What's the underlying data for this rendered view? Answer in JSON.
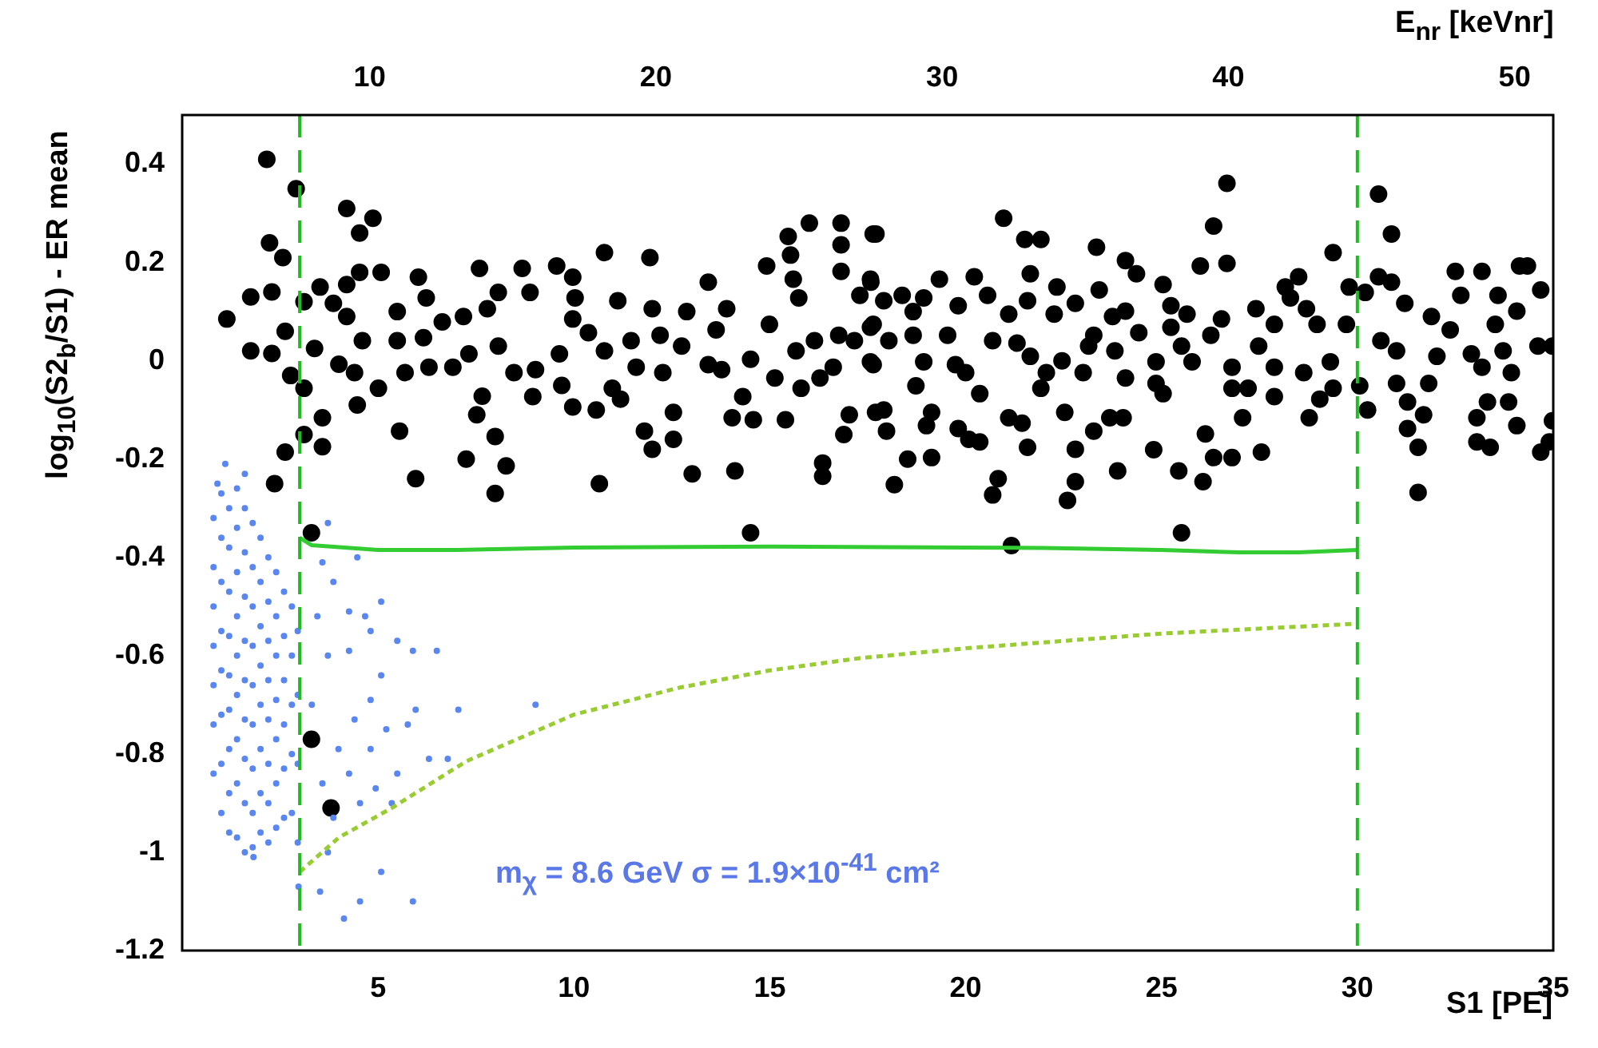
{
  "chart_data": {
    "type": "scatter",
    "xlabel": "S1 [PE]",
    "ylabel": "log$_{10}$(S2$_{b}$/S1) - ER mean",
    "x2label": "E$_{nr}$ [keVnr]",
    "xlim": [
      0,
      35
    ],
    "xticks": [
      5,
      10,
      15,
      20,
      25,
      30,
      35
    ],
    "x2lim": [
      3.45,
      51.35
    ],
    "x2ticks": [
      10,
      20,
      30,
      40,
      50
    ],
    "ylim": [
      -1.2,
      0.5
    ],
    "yticks": [
      -1.2,
      -1,
      -0.8,
      -0.6,
      -0.4,
      -0.2,
      0,
      0.2,
      0.4
    ],
    "annotations": [
      "m$_{χ}$ = 8.6 GeV     σ = 1.9×10$^{-41}$ cm²"
    ],
    "ref_lines": [
      {
        "axis": "x",
        "value": 3,
        "label": null,
        "color": "#22bb22",
        "line_style": "dashed"
      },
      {
        "axis": "x",
        "value": 30,
        "label": null,
        "color": "#22bb22",
        "line_style": "dashed"
      }
    ],
    "series": [
      {
        "type": "scatter",
        "marker": "circle",
        "color": "#5a86f0",
        "x": [
          0.8,
          0.8,
          0.8,
          0.8,
          0.8,
          0.8,
          0.8,
          1.0,
          1.0,
          1.0,
          1.0,
          1.0,
          1.0,
          1.0,
          1.0,
          1.2,
          1.2,
          1.2,
          1.2,
          1.2,
          1.2,
          1.2,
          1.2,
          1.2,
          1.4,
          1.4,
          1.4,
          1.4,
          1.4,
          1.4,
          1.4,
          1.4,
          1.4,
          1.6,
          1.6,
          1.6,
          1.6,
          1.6,
          1.6,
          1.6,
          1.6,
          1.6,
          1.8,
          1.8,
          1.8,
          1.8,
          1.8,
          1.8,
          1.8,
          1.8,
          1.8,
          2.0,
          2.0,
          2.0,
          2.0,
          2.0,
          2.0,
          2.0,
          2.0,
          2.2,
          2.2,
          2.2,
          2.2,
          2.2,
          2.2,
          2.2,
          2.2,
          2.4,
          2.4,
          2.4,
          2.4,
          2.4,
          2.4,
          2.4,
          2.6,
          2.6,
          2.6,
          2.6,
          2.6,
          2.6,
          2.8,
          2.8,
          2.8,
          2.8,
          2.8,
          2.95,
          2.95,
          2.95,
          2.95,
          1.1,
          0.9,
          1.6,
          4.47,
          5.08,
          6.5,
          7.05,
          9.02,
          5.89,
          5.49,
          5.96,
          6.78,
          6.3,
          5.49,
          5.08,
          5.89,
          4.54,
          4.13,
          3.52,
          2.97,
          1.82,
          3.72,
          3.58,
          3.86,
          4.26,
          4.67,
          4.81,
          4.26,
          5.08,
          4.81,
          4.4,
          5.21,
          5.76,
          4.81,
          4.26,
          4.94,
          4.54,
          3.86,
          3.72,
          5.35,
          3.99,
          3.72,
          3.45,
          3.31,
          3.58
        ],
        "values": [
          -0.32,
          -0.42,
          -0.5,
          -0.58,
          -0.66,
          -0.74,
          -0.84,
          -0.27,
          -0.36,
          -0.45,
          -0.55,
          -0.63,
          -0.72,
          -0.82,
          -0.92,
          -0.3,
          -0.38,
          -0.47,
          -0.56,
          -0.64,
          -0.71,
          -0.79,
          -0.88,
          -0.96,
          -0.26,
          -0.34,
          -0.43,
          -0.52,
          -0.6,
          -0.68,
          -0.77,
          -0.86,
          -0.97,
          -0.3,
          -0.39,
          -0.48,
          -0.57,
          -0.65,
          -0.73,
          -0.81,
          -0.9,
          -1.0,
          -0.33,
          -0.42,
          -0.5,
          -0.58,
          -0.66,
          -0.74,
          -0.83,
          -0.92,
          -0.99,
          -0.36,
          -0.45,
          -0.54,
          -0.62,
          -0.7,
          -0.79,
          -0.88,
          -0.96,
          -0.4,
          -0.49,
          -0.57,
          -0.65,
          -0.73,
          -0.82,
          -0.9,
          -0.98,
          -0.43,
          -0.52,
          -0.6,
          -0.69,
          -0.77,
          -0.86,
          -0.95,
          -0.47,
          -0.56,
          -0.65,
          -0.74,
          -0.83,
          -0.93,
          -0.5,
          -0.6,
          -0.7,
          -0.8,
          -0.92,
          -0.55,
          -0.68,
          -0.82,
          -0.98,
          -0.21,
          -0.25,
          -0.23,
          -0.4,
          -0.49,
          -0.59,
          -0.71,
          -0.7,
          -0.59,
          -0.57,
          -0.71,
          -0.81,
          -0.81,
          -0.84,
          -1.04,
          -1.1,
          -1.1,
          -1.135,
          -1.08,
          -1.07,
          -1.01,
          -0.33,
          -0.41,
          -0.45,
          -0.51,
          -0.52,
          -0.55,
          -0.59,
          -0.64,
          -0.69,
          -0.73,
          -0.75,
          -0.74,
          -0.79,
          -0.84,
          -0.87,
          -0.9,
          -0.93,
          -1.0,
          -0.9,
          -0.79,
          -0.6,
          -0.52,
          -0.7,
          -0.86
        ]
      },
      {
        "type": "scatter",
        "marker": "circle",
        "color": "#000000",
        "x": [
          2.16,
          2.91,
          2.23,
          2.57,
          1.14,
          1.75,
          2.29,
          1.75,
          2.29,
          2.63,
          2.77,
          3.11,
          3.38,
          3.11,
          3.58,
          3.11,
          3.58,
          2.63,
          2.36,
          4.2,
          4.53,
          4.87,
          4.53,
          4.2,
          5.08,
          3.52,
          3.86,
          4.2,
          4.0,
          4.4,
          4.47,
          5.01,
          4.6,
          5.55,
          5.96,
          5.49,
          5.49,
          6.03,
          6.23,
          6.16,
          5.69,
          6.3,
          6.64,
          7.18,
          7.32,
          6.91,
          7.59,
          7.66,
          7.52,
          7.25,
          7.99,
          8.27,
          7.99,
          8.07,
          7.79,
          8.07,
          8.47,
          8.68,
          8.88,
          9.02,
          8.95,
          9.56,
          9.63,
          9.69,
          9.97,
          10.03,
          9.97,
          9.97,
          10.37,
          10.65,
          10.78,
          10.57,
          10.78,
          10.98,
          11.12,
          11.19,
          11.46,
          11.59,
          11.8,
          12.0,
          11.94,
          12.0,
          12.2,
          12.27,
          12.54,
          12.54,
          12.75,
          12.88,
          13.02,
          13.43,
          13.43,
          13.63,
          13.77,
          13.9,
          14.04,
          14.11,
          14.31,
          14.51,
          14.51,
          14.58,
          14.92,
          14.99,
          15.13,
          15.4,
          15.47,
          15.53,
          15.6,
          15.74,
          15.67,
          15.8,
          16.01,
          16.14,
          16.35,
          16.35,
          16.28,
          16.62,
          16.82,
          16.82,
          16.82,
          16.76,
          17.03,
          16.89,
          17.16,
          17.3,
          17.58,
          17.64,
          17.57,
          17.64,
          17.7,
          17.71,
          17.57,
          17.91,
          17.64,
          17.57,
          18.04,
          17.91,
          17.98,
          18.18,
          18.52,
          18.38,
          18.66,
          18.93,
          19.33,
          18.66,
          18.73,
          18.93,
          19.13,
          19.0,
          19.13,
          19.54,
          19.81,
          19.74,
          20.0,
          19.81,
          20.08,
          20.36,
          20.22,
          20.36,
          20.56,
          20.69,
          20.97,
          20.83,
          20.69,
          21.1,
          21.1,
          21.17,
          21.31,
          21.44,
          21.51,
          21.65,
          21.58,
          21.65,
          21.58,
          21.92,
          21.92,
          22.26,
          22.33,
          22.06,
          22.46,
          22.53,
          22.8,
          22.8,
          22.6,
          22.8,
          23.0,
          23.14,
          23.27,
          23.34,
          23.41,
          23.27,
          23.68,
          23.75,
          23.81,
          24.08,
          24.08,
          24.08,
          24.02,
          23.88,
          24.36,
          24.42,
          24.86,
          24.86,
          24.8,
          25.04,
          25.04,
          25.24,
          25.24,
          25.51,
          25.44,
          25.51,
          25.65,
          25.78,
          25.99,
          26.12,
          26.06,
          26.26,
          26.33,
          26.67,
          26.67,
          26.53,
          26.33,
          26.8,
          26.8,
          26.8,
          27.07,
          27.21,
          27.41,
          27.55,
          27.48,
          27.88,
          27.88,
          27.88,
          28.16,
          28.29,
          28.5,
          28.7,
          28.63,
          28.77,
          28.97,
          29.04,
          29.31,
          29.38,
          29.38,
          29.72,
          29.79,
          30.06,
          30.26,
          30.2,
          30.54,
          30.87,
          30.54,
          30.87,
          30.6,
          31.0,
          31.21,
          31.0,
          31.28,
          31.28,
          31.55,
          31.55,
          31.69,
          31.89,
          32.03,
          31.82,
          32.37,
          32.5,
          32.64,
          32.91,
          33.05,
          33.05,
          33.18,
          33.18,
          33.32,
          33.39,
          33.59,
          33.52,
          33.72,
          33.86,
          33.93,
          34.07,
          34.14,
          34.34,
          34.07,
          34.68,
          34.61,
          34.68,
          34.98,
          34.98,
          34.9,
          3.3,
          3.3,
          3.8
        ],
        "values": [
          0.41,
          0.35,
          0.24,
          0.21,
          0.085,
          0.13,
          0.14,
          0.02,
          0.015,
          0.06,
          -0.03,
          0.12,
          0.025,
          -0.056,
          -0.116,
          -0.15,
          -0.175,
          -0.186,
          -0.25,
          0.31,
          0.26,
          0.29,
          0.18,
          0.155,
          0.18,
          0.15,
          0.117,
          0.09,
          -0.007,
          -0.024,
          -0.09,
          -0.056,
          0.041,
          -0.143,
          -0.24,
          0.1,
          0.041,
          0.17,
          0.128,
          0.047,
          -0.024,
          -0.013,
          0.079,
          0.09,
          0.014,
          -0.013,
          0.188,
          -0.072,
          -0.11,
          -0.2,
          -0.154,
          -0.214,
          -0.27,
          0.139,
          0.106,
          0.03,
          -0.024,
          0.188,
          0.139,
          -0.018,
          -0.073,
          0.193,
          0.014,
          -0.05,
          0.17,
          0.128,
          0.085,
          -0.094,
          0.057,
          -0.25,
          0.22,
          -0.1,
          0.02,
          -0.056,
          0.122,
          -0.078,
          0.041,
          -0.013,
          -0.143,
          -0.18,
          0.21,
          0.106,
          0.052,
          -0.024,
          -0.105,
          -0.16,
          0.03,
          0.1,
          -0.23,
          0.16,
          -0.008,
          0.063,
          -0.018,
          0.106,
          -0.116,
          -0.224,
          -0.073,
          0.003,
          -0.35,
          -0.12,
          0.193,
          0.074,
          -0.035,
          -0.12,
          0.253,
          0.215,
          0.166,
          0.128,
          0.02,
          -0.056,
          0.28,
          0.041,
          -0.208,
          -0.235,
          -0.035,
          -0.013,
          0.28,
          0.236,
          0.182,
          0.052,
          -0.11,
          -0.15,
          0.041,
          0.133,
          0.16,
          0.258,
          0.068,
          -0.008,
          -0.105,
          0.258,
          0.166,
          0.122,
          0.074,
          -0.002,
          0.041,
          -0.1,
          -0.143,
          -0.252,
          -0.2,
          0.133,
          0.1,
          0.128,
          0.166,
          0.052,
          -0.051,
          -0.002,
          -0.105,
          -0.132,
          -0.197,
          0.052,
          0.112,
          -0.008,
          -0.024,
          -0.138,
          -0.16,
          -0.165,
          0.171,
          -0.067,
          0.133,
          0.041,
          0.29,
          -0.24,
          -0.273,
          0.095,
          -0.116,
          -0.376,
          0.036,
          -0.127,
          0.247,
          0.177,
          0.122,
          0.009,
          -0.176,
          0.247,
          -0.056,
          0.095,
          0.15,
          -0.024,
          0.0,
          -0.105,
          0.117,
          -0.18,
          -0.284,
          -0.246,
          -0.024,
          0.03,
          0.052,
          0.231,
          0.144,
          -0.143,
          -0.116,
          0.09,
          0.02,
          0.204,
          0.101,
          -0.035,
          -0.116,
          -0.224,
          0.177,
          0.057,
          -0.002,
          -0.046,
          -0.181,
          0.155,
          -0.067,
          0.112,
          0.068,
          0.03,
          -0.224,
          -0.35,
          0.095,
          -0.002,
          0.193,
          -0.149,
          -0.246,
          0.052,
          0.274,
          0.361,
          0.198,
          0.085,
          -0.197,
          -0.197,
          -0.013,
          -0.056,
          -0.116,
          -0.056,
          0.106,
          -0.186,
          0.03,
          0.074,
          -0.013,
          -0.073,
          0.15,
          0.128,
          0.171,
          0.106,
          -0.024,
          -0.116,
          0.074,
          -0.078,
          -0.002,
          0.22,
          -0.056,
          0.074,
          0.15,
          -0.051,
          -0.1,
          0.139,
          0.339,
          0.258,
          0.171,
          0.16,
          0.041,
          0.02,
          0.117,
          -0.046,
          -0.084,
          -0.138,
          -0.176,
          -0.268,
          -0.11,
          0.09,
          0.009,
          -0.046,
          0.063,
          0.182,
          0.133,
          0.014,
          -0.116,
          -0.165,
          0.182,
          -0.013,
          -0.084,
          -0.176,
          0.133,
          0.074,
          0.02,
          -0.084,
          -0.024,
          -0.132,
          0.193,
          0.193,
          0.101,
          0.144,
          0.03,
          -0.186,
          -0.122,
          0.03,
          -0.165,
          -0.35,
          -0.77,
          -0.91
        ]
      },
      {
        "type": "line",
        "marker": "none",
        "color": "#33cc33",
        "line_style": "solid",
        "x": [
          3,
          3.3,
          5,
          7,
          10,
          15,
          20,
          22,
          25,
          27,
          28.5,
          30
        ],
        "values": [
          -0.36,
          -0.375,
          -0.385,
          -0.385,
          -0.38,
          -0.378,
          -0.38,
          -0.381,
          -0.385,
          -0.39,
          -0.39,
          -0.385
        ]
      },
      {
        "type": "line",
        "marker": "none",
        "color": "#99cc33",
        "line_style": "dotted",
        "x": [
          3,
          4,
          5.35,
          7.25,
          10,
          12.7,
          15,
          17.3,
          20,
          22.5,
          25,
          27.5,
          30
        ],
        "values": [
          -1.04,
          -0.97,
          -0.91,
          -0.815,
          -0.72,
          -0.665,
          -0.63,
          -0.605,
          -0.585,
          -0.57,
          -0.555,
          -0.545,
          -0.535
        ]
      }
    ]
  }
}
